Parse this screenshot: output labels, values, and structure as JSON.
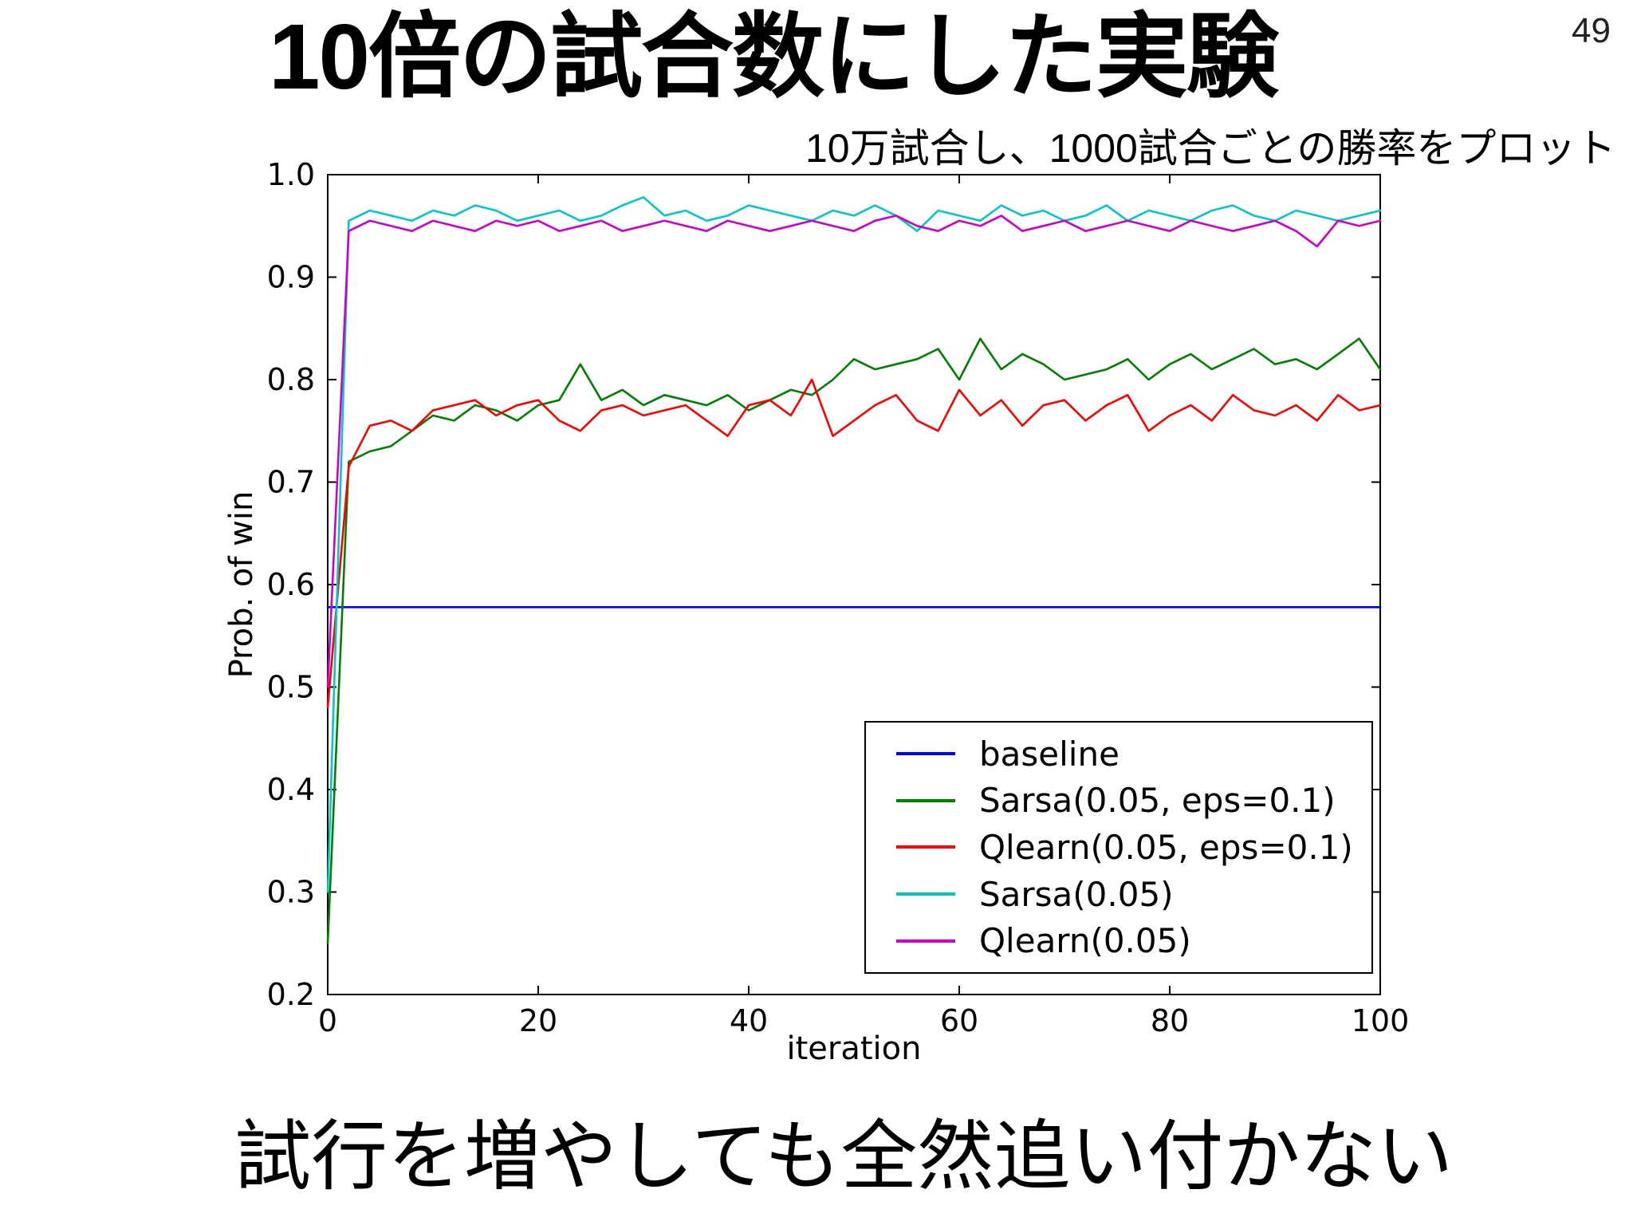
{
  "slide": {
    "page_number": "49",
    "title": "10倍の試合数にした実験",
    "subtitle": "10万試合し、1000試合ごとの勝率をプロット",
    "caption": "試行を増やしても全然追い付かない"
  },
  "chart_data": {
    "type": "line",
    "title": "",
    "xlabel": "iteration",
    "ylabel": "Prob. of win",
    "xlim": [
      0,
      100
    ],
    "ylim": [
      0.2,
      1.0
    ],
    "xticks": [
      0,
      20,
      40,
      60,
      80,
      100
    ],
    "yticks": [
      0.2,
      0.3,
      0.4,
      0.5,
      0.6,
      0.7,
      0.8,
      0.9,
      1.0
    ],
    "grid": false,
    "legend_position": "inside lower right",
    "frame_color": "#000000",
    "background_color": "#ffffff",
    "x": [
      0,
      2,
      4,
      6,
      8,
      10,
      12,
      14,
      16,
      18,
      20,
      22,
      24,
      26,
      28,
      30,
      32,
      34,
      36,
      38,
      40,
      42,
      44,
      46,
      48,
      50,
      52,
      54,
      56,
      58,
      60,
      62,
      64,
      66,
      68,
      70,
      72,
      74,
      76,
      78,
      80,
      82,
      84,
      86,
      88,
      90,
      92,
      94,
      96,
      98,
      100
    ],
    "series": [
      {
        "name": "baseline",
        "color": "#0000ff",
        "values": [
          0.578,
          0.578,
          0.578,
          0.578,
          0.578,
          0.578,
          0.578,
          0.578,
          0.578,
          0.578,
          0.578,
          0.578,
          0.578,
          0.578,
          0.578,
          0.578,
          0.578,
          0.578,
          0.578,
          0.578,
          0.578,
          0.578,
          0.578,
          0.578,
          0.578,
          0.578,
          0.578,
          0.578,
          0.578,
          0.578,
          0.578,
          0.578,
          0.578,
          0.578,
          0.578,
          0.578,
          0.578,
          0.578,
          0.578,
          0.578,
          0.578,
          0.578,
          0.578,
          0.578,
          0.578,
          0.578,
          0.578,
          0.578,
          0.578,
          0.578,
          0.578
        ]
      },
      {
        "name": "Sarsa(0.05, eps=0.1)",
        "color": "#007f00",
        "values": [
          0.25,
          0.72,
          0.73,
          0.735,
          0.75,
          0.765,
          0.76,
          0.775,
          0.77,
          0.76,
          0.775,
          0.78,
          0.815,
          0.78,
          0.79,
          0.775,
          0.785,
          0.78,
          0.775,
          0.785,
          0.77,
          0.78,
          0.79,
          0.785,
          0.8,
          0.82,
          0.81,
          0.815,
          0.82,
          0.83,
          0.8,
          0.84,
          0.81,
          0.825,
          0.815,
          0.8,
          0.805,
          0.81,
          0.82,
          0.8,
          0.815,
          0.825,
          0.81,
          0.82,
          0.83,
          0.815,
          0.82,
          0.81,
          0.825,
          0.84,
          0.81
        ]
      },
      {
        "name": "Qlearn(0.05, eps=0.1)",
        "color": "#ff0000",
        "values": [
          0.48,
          0.715,
          0.755,
          0.76,
          0.75,
          0.77,
          0.775,
          0.78,
          0.765,
          0.775,
          0.78,
          0.76,
          0.75,
          0.77,
          0.775,
          0.765,
          0.77,
          0.775,
          0.76,
          0.745,
          0.775,
          0.78,
          0.765,
          0.8,
          0.745,
          0.76,
          0.775,
          0.785,
          0.76,
          0.75,
          0.79,
          0.765,
          0.78,
          0.755,
          0.775,
          0.78,
          0.76,
          0.775,
          0.785,
          0.75,
          0.765,
          0.775,
          0.76,
          0.785,
          0.77,
          0.765,
          0.775,
          0.76,
          0.785,
          0.77,
          0.775
        ]
      },
      {
        "name": "Sarsa(0.05)",
        "color": "#00c8c8",
        "values": [
          0.3,
          0.955,
          0.965,
          0.96,
          0.955,
          0.965,
          0.96,
          0.97,
          0.965,
          0.955,
          0.96,
          0.965,
          0.955,
          0.96,
          0.97,
          0.978,
          0.96,
          0.965,
          0.955,
          0.96,
          0.97,
          0.965,
          0.96,
          0.955,
          0.965,
          0.96,
          0.97,
          0.96,
          0.945,
          0.965,
          0.96,
          0.955,
          0.97,
          0.96,
          0.965,
          0.955,
          0.96,
          0.97,
          0.955,
          0.965,
          0.96,
          0.955,
          0.965,
          0.97,
          0.96,
          0.955,
          0.965,
          0.96,
          0.955,
          0.96,
          0.965
        ]
      },
      {
        "name": "Qlearn(0.05)",
        "color": "#cc00cc",
        "values": [
          0.5,
          0.945,
          0.955,
          0.95,
          0.945,
          0.955,
          0.95,
          0.945,
          0.955,
          0.95,
          0.955,
          0.945,
          0.95,
          0.955,
          0.945,
          0.95,
          0.955,
          0.95,
          0.945,
          0.955,
          0.95,
          0.945,
          0.95,
          0.955,
          0.95,
          0.945,
          0.955,
          0.96,
          0.95,
          0.945,
          0.955,
          0.95,
          0.96,
          0.945,
          0.95,
          0.955,
          0.945,
          0.95,
          0.955,
          0.95,
          0.945,
          0.955,
          0.95,
          0.945,
          0.95,
          0.955,
          0.945,
          0.93,
          0.955,
          0.95,
          0.955
        ]
      }
    ]
  }
}
